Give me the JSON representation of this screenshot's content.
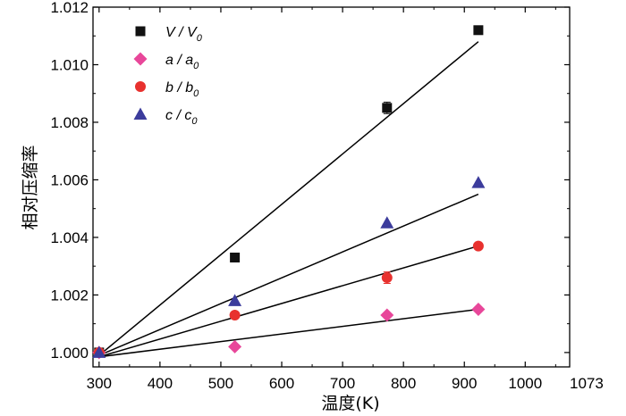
{
  "chart_data": {
    "type": "scatter",
    "title": "",
    "xlabel": "温度(K)",
    "ylabel": "相对压缩率",
    "xlim": [
      290,
      1073
    ],
    "ylim": [
      0.9995,
      1.012
    ],
    "x_ticks": [
      300,
      400,
      500,
      600,
      700,
      800,
      900,
      1000
    ],
    "x_tick_labels": [
      "300",
      "400",
      "500",
      "600",
      "700",
      "800",
      "900",
      "1000"
    ],
    "x_end_label": "1073",
    "y_ticks": [
      1.0,
      1.002,
      1.004,
      1.006,
      1.008,
      1.01,
      1.012
    ],
    "y_tick_labels": [
      "1.000",
      "1.002",
      "1.004",
      "1.006",
      "1.008",
      "1.010",
      "1.012"
    ],
    "legend_position": "top-left",
    "series": [
      {
        "name": "V / V0",
        "label_main": "V / V",
        "label_sub": "0",
        "marker": "square",
        "color": "#111111",
        "x": [
          300,
          523,
          773,
          923
        ],
        "y": [
          1.0,
          1.0033,
          1.0085,
          1.0112
        ],
        "error": [
          8e-05,
          5e-05,
          0.0002,
          8e-05
        ],
        "fit": {
          "x": [
            300,
            923
          ],
          "y": [
            0.9999,
            1.0108
          ]
        }
      },
      {
        "name": "a / a0",
        "label_main": "a / a",
        "label_sub": "0",
        "marker": "diamond",
        "color": "#e8479a",
        "x": [
          300,
          523,
          773,
          923
        ],
        "y": [
          1.0,
          1.0002,
          1.0013,
          1.0015
        ],
        "error": [
          0,
          0,
          0,
          0
        ],
        "fit": {
          "x": [
            300,
            923
          ],
          "y": [
            0.99985,
            1.0015
          ]
        }
      },
      {
        "name": "b / b0",
        "label_main": "b / b",
        "label_sub": "0",
        "marker": "circle",
        "color": "#e8312e",
        "x": [
          300,
          523,
          773,
          923
        ],
        "y": [
          1.0,
          1.0013,
          1.0026,
          1.0037
        ],
        "error": [
          0,
          0,
          0.0002,
          0
        ],
        "fit": {
          "x": [
            300,
            923
          ],
          "y": [
            0.99985,
            1.0037
          ]
        }
      },
      {
        "name": "c / c0",
        "label_main": "c / c",
        "label_sub": "0",
        "marker": "triangle",
        "color": "#3c3c9c",
        "x": [
          300,
          523,
          773,
          923
        ],
        "y": [
          1.0,
          1.0018,
          1.0045,
          1.0059
        ],
        "error": [
          0,
          0,
          0,
          0
        ],
        "fit": {
          "x": [
            300,
            923
          ],
          "y": [
            0.9999,
            1.0055
          ]
        }
      }
    ]
  }
}
